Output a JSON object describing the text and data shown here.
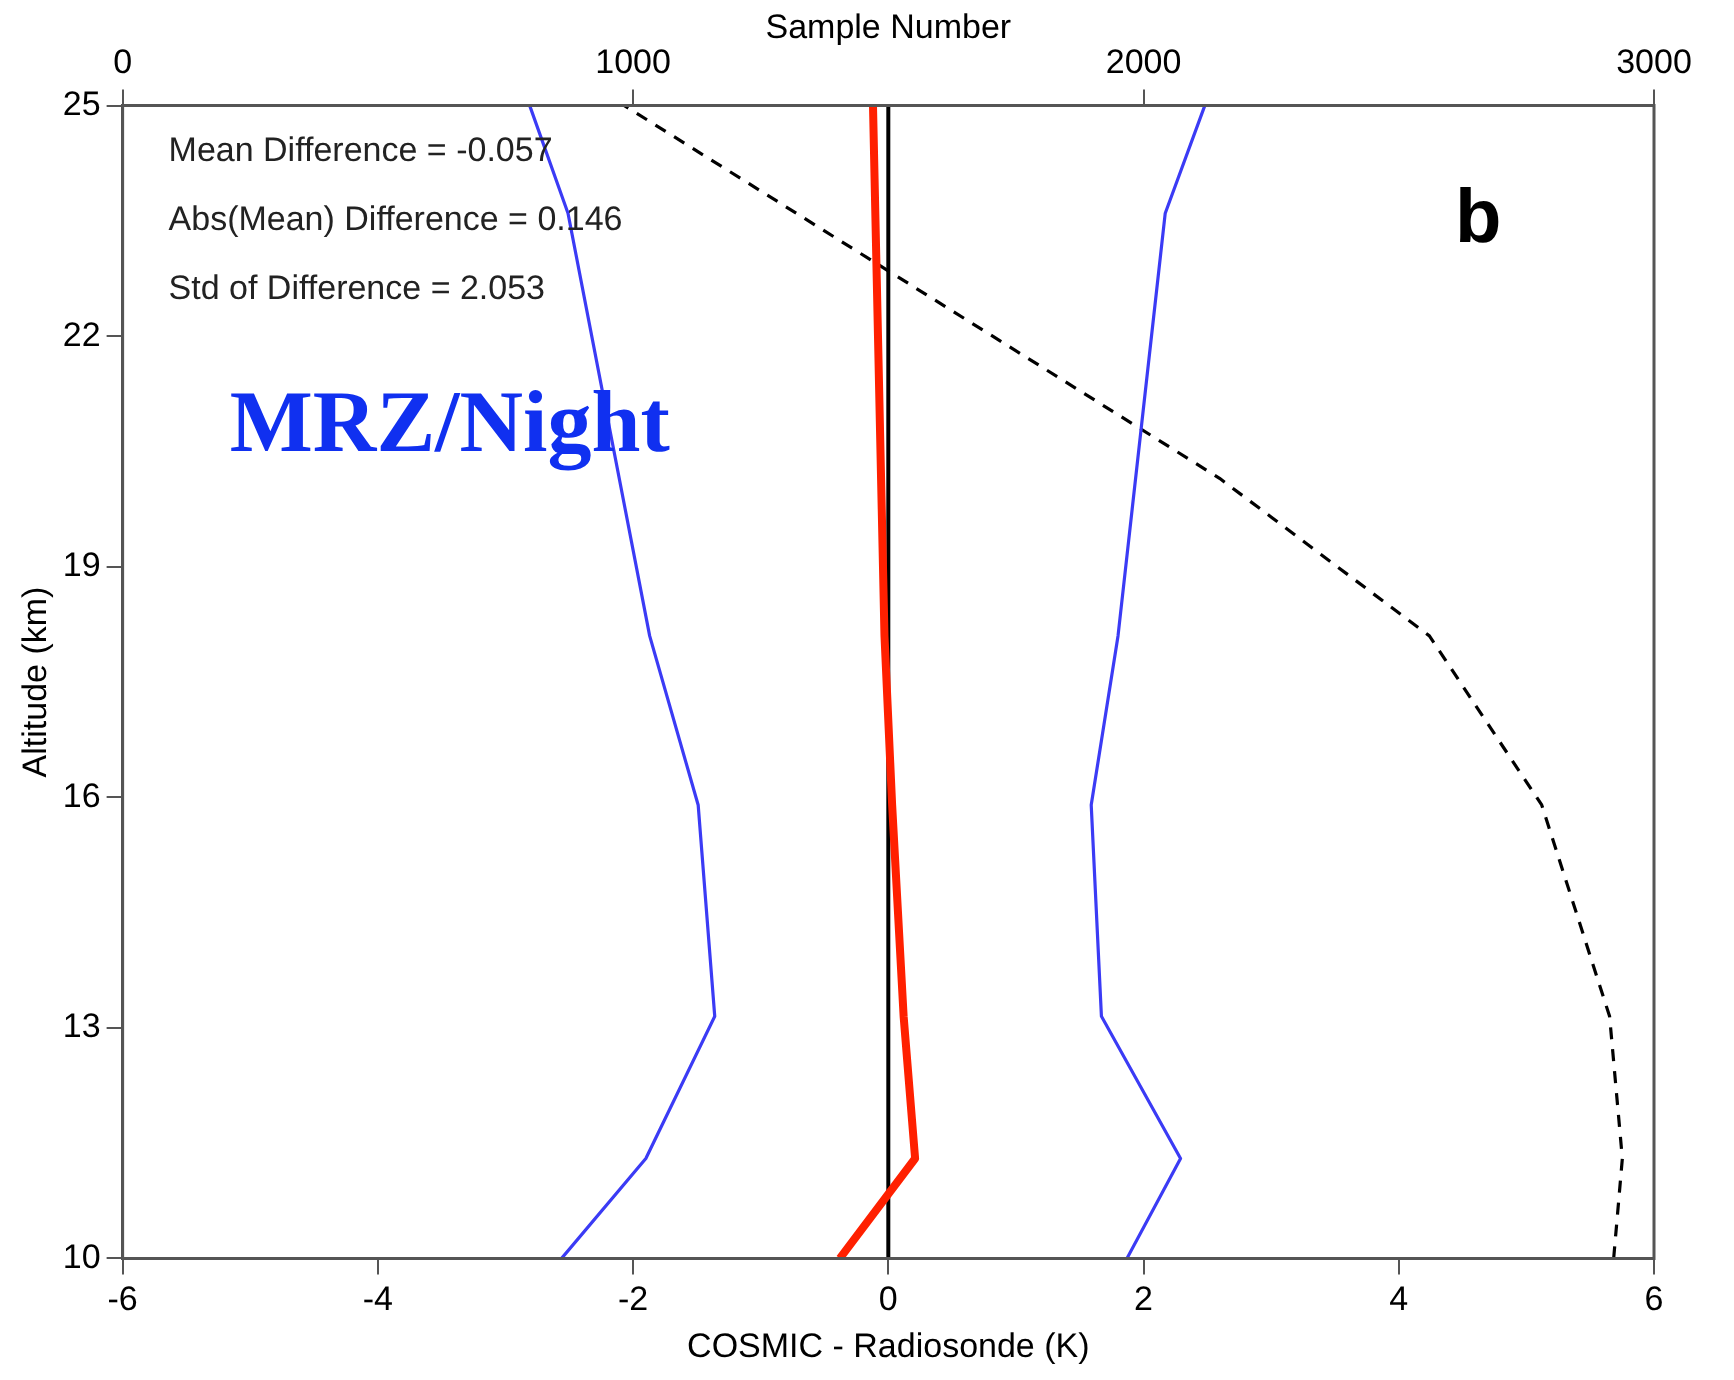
{
  "chart_data": {
    "type": "line",
    "xlabel": "COSMIC - Radiosonde (K)",
    "ylabel": "Altitude (km)",
    "x2label": "Sample Number",
    "xlim": [
      -6,
      6
    ],
    "xticks": [
      -6,
      -4,
      -2,
      0,
      2,
      4,
      6
    ],
    "ylim": [
      10,
      25
    ],
    "yticks": [
      10,
      13,
      16,
      19,
      22,
      25
    ],
    "x2lim": [
      0,
      3000
    ],
    "x2ticks": [
      0,
      1000,
      2000,
      3000
    ],
    "grid": false,
    "legend": false,
    "marker": "none",
    "series": [
      {
        "color": "#3b3bf5",
        "x": [
          -2.56,
          -1.9,
          -1.36,
          -1.49,
          -1.87,
          -2.51,
          -2.81
        ],
        "values": [
          10,
          11.3,
          13.15,
          15.9,
          18.1,
          23.6,
          25
        ]
      },
      {
        "color": "#3b3bf5",
        "x": [
          1.87,
          2.29,
          1.67,
          1.59,
          1.8,
          2.17,
          2.48
        ],
        "values": [
          10,
          11.3,
          13.15,
          15.9,
          18.1,
          23.6,
          25
        ]
      },
      {
        "color": "#ff2000",
        "x": [
          -0.38,
          0.21,
          0.12,
          0.03,
          -0.03,
          -0.12
        ],
        "values": [
          10,
          11.3,
          13.15,
          15.9,
          18.1,
          25
        ]
      },
      {
        "color": "#000000",
        "axis": "x2",
        "line_style": "dashed",
        "x": [
          2921,
          2938,
          2913,
          2780,
          2560,
          2149,
          983
        ],
        "values": [
          10,
          11.3,
          13.15,
          15.9,
          18.1,
          20.15,
          25
        ]
      }
    ],
    "ref_lines": [
      {
        "axis": "x",
        "value": 0,
        "color": "#000000"
      }
    ],
    "annotations": [
      "Mean Difference = -0.057",
      "Abs(Mean) Difference = 0.146",
      "Std of Difference = 2.053",
      "b",
      "MRZ/Night"
    ]
  }
}
